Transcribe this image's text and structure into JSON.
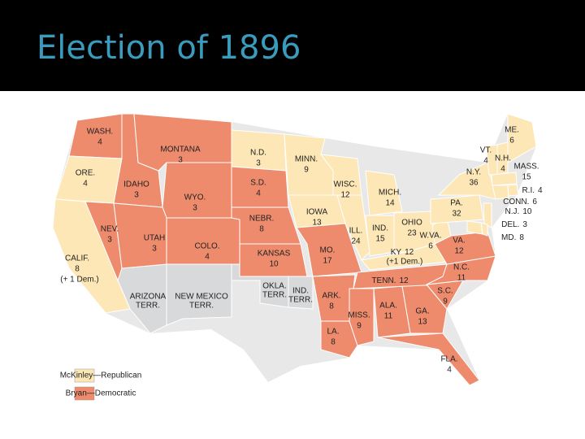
{
  "title": "Election of 1896",
  "legend": [
    {
      "label": "McKinley—Republican",
      "party": "rep",
      "color": "#fde7b6"
    },
    {
      "label": "Bryan—Democratic",
      "party": "dem",
      "color": "#ee8b6d"
    }
  ],
  "territory_color": "#d8d9db",
  "states": [
    {
      "name": "WASH.",
      "votes": 4,
      "party": "dem"
    },
    {
      "name": "ORE.",
      "votes": 4,
      "party": "rep"
    },
    {
      "name": "CALIF.",
      "votes": 8,
      "party": "rep",
      "note": "(+ 1 Dem.)"
    },
    {
      "name": "NEV.",
      "votes": 3,
      "party": "dem"
    },
    {
      "name": "IDAHO",
      "votes": 3,
      "party": "dem"
    },
    {
      "name": "MONTANA",
      "votes": 3,
      "party": "dem"
    },
    {
      "name": "WYO.",
      "votes": 3,
      "party": "dem"
    },
    {
      "name": "UTAH",
      "votes": 3,
      "party": "dem"
    },
    {
      "name": "COLO.",
      "votes": 4,
      "party": "dem"
    },
    {
      "name": "N.D.",
      "votes": 3,
      "party": "rep"
    },
    {
      "name": "S.D.",
      "votes": 4,
      "party": "dem"
    },
    {
      "name": "NEBR.",
      "votes": 8,
      "party": "dem"
    },
    {
      "name": "KANSAS",
      "votes": 10,
      "party": "dem"
    },
    {
      "name": "MINN.",
      "votes": 9,
      "party": "rep"
    },
    {
      "name": "IOWA",
      "votes": 13,
      "party": "rep"
    },
    {
      "name": "MO.",
      "votes": 17,
      "party": "dem"
    },
    {
      "name": "ARK.",
      "votes": 8,
      "party": "dem"
    },
    {
      "name": "LA.",
      "votes": 8,
      "party": "dem"
    },
    {
      "name": "MISS.",
      "votes": 9,
      "party": "dem"
    },
    {
      "name": "ALA.",
      "votes": 11,
      "party": "dem"
    },
    {
      "name": "GA.",
      "votes": 13,
      "party": "dem"
    },
    {
      "name": "FLA.",
      "votes": 4,
      "party": "dem"
    },
    {
      "name": "TENN.",
      "votes": 12,
      "party": "dem"
    },
    {
      "name": "KY",
      "votes": 12,
      "party": "rep",
      "note": "(+1 Dem.)"
    },
    {
      "name": "S.C.",
      "votes": 9,
      "party": "dem"
    },
    {
      "name": "N.C.",
      "votes": 11,
      "party": "dem"
    },
    {
      "name": "VA.",
      "votes": 12,
      "party": "dem"
    },
    {
      "name": "W.VA.",
      "votes": 6,
      "party": "rep"
    },
    {
      "name": "OHIO",
      "votes": 23,
      "party": "rep"
    },
    {
      "name": "IND.",
      "votes": 15,
      "party": "rep"
    },
    {
      "name": "ILL.",
      "votes": 24,
      "party": "rep"
    },
    {
      "name": "MICH.",
      "votes": 14,
      "party": "rep"
    },
    {
      "name": "WISC.",
      "votes": 12,
      "party": "rep"
    },
    {
      "name": "PA.",
      "votes": 32,
      "party": "rep"
    },
    {
      "name": "N.Y.",
      "votes": 36,
      "party": "rep"
    },
    {
      "name": "ME.",
      "votes": 6,
      "party": "rep"
    },
    {
      "name": "VT.",
      "votes": 4,
      "party": "rep"
    },
    {
      "name": "N.H.",
      "votes": 4,
      "party": "rep"
    },
    {
      "name": "MASS.",
      "votes": 15,
      "party": "rep"
    },
    {
      "name": "R.I.",
      "votes": 4,
      "party": "rep"
    },
    {
      "name": "CONN.",
      "votes": 6,
      "party": "rep"
    },
    {
      "name": "N.J.",
      "votes": 10,
      "party": "rep"
    },
    {
      "name": "DEL.",
      "votes": 3,
      "party": "rep"
    },
    {
      "name": "MD.",
      "votes": 8,
      "party": "rep"
    }
  ],
  "territories": [
    {
      "lines": [
        "ARIZONA",
        "TERR."
      ]
    },
    {
      "lines": [
        "NEW MEXICO",
        "TERR."
      ]
    },
    {
      "lines": [
        "OKLA.",
        "TERR."
      ]
    },
    {
      "lines": [
        "IND.",
        "TERR."
      ]
    }
  ]
}
